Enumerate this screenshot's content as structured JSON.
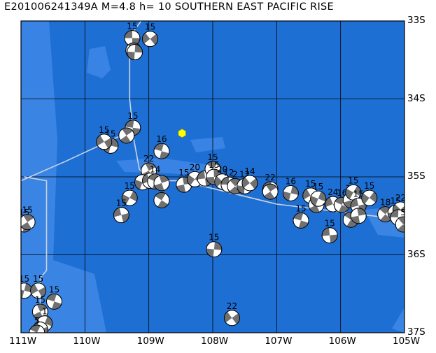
{
  "title": "E201006241349A M=4.8 h= 10 SOUTHERN EAST PACIFIC RISE",
  "map": {
    "lon_range": [
      -111,
      -105
    ],
    "lat_range": [
      -37,
      -33
    ],
    "lon_labels": [
      "111W",
      "110W",
      "109W",
      "108W",
      "107W",
      "106W",
      "105W"
    ],
    "lat_labels": [
      "33S",
      "34S",
      "35S",
      "36S",
      "37S"
    ],
    "colors": {
      "ocean": "#1e6fd4",
      "shallow": "#3d86e6",
      "plate_boundary": "#c8d4e6",
      "frame": "#000000",
      "event_marker": "#ffff00",
      "beach_dark": "#707070"
    }
  },
  "event": {
    "lon": -108.48,
    "lat": -34.44
  },
  "mechanisms": [
    {
      "lon": -109.26,
      "lat": -33.22,
      "label": "15"
    },
    {
      "lon": -109.24,
      "lat": -33.38,
      "label": ""
    },
    {
      "lon": -109.22,
      "lat": -33.4,
      "label": ""
    },
    {
      "lon": -108.98,
      "lat": -33.23,
      "label": "15"
    },
    {
      "lon": -109.25,
      "lat": -34.37,
      "label": "15"
    },
    {
      "lon": -109.35,
      "lat": -34.47,
      "label": ""
    },
    {
      "lon": -109.6,
      "lat": -34.6,
      "label": "15"
    },
    {
      "lon": -109.7,
      "lat": -34.55,
      "label": "15"
    },
    {
      "lon": -108.8,
      "lat": -34.67,
      "label": "16"
    },
    {
      "lon": -109.0,
      "lat": -34.92,
      "label": "22"
    },
    {
      "lon": -109.1,
      "lat": -35.07,
      "label": ""
    },
    {
      "lon": -108.98,
      "lat": -35.05,
      "label": ""
    },
    {
      "lon": -108.9,
      "lat": -35.06,
      "label": "14"
    },
    {
      "lon": -108.8,
      "lat": -35.08,
      "label": ""
    },
    {
      "lon": -109.3,
      "lat": -35.27,
      "label": "15"
    },
    {
      "lon": -109.43,
      "lat": -35.49,
      "label": "15"
    },
    {
      "lon": -108.8,
      "lat": -35.3,
      "label": ""
    },
    {
      "lon": -108.45,
      "lat": -35.1,
      "label": "15"
    },
    {
      "lon": -108.28,
      "lat": -35.03,
      "label": "20"
    },
    {
      "lon": -108.12,
      "lat": -35.02,
      "label": ""
    },
    {
      "lon": -108.0,
      "lat": -34.9,
      "label": "15"
    },
    {
      "lon": -107.98,
      "lat": -35.0,
      "label": "15"
    },
    {
      "lon": -107.85,
      "lat": -35.06,
      "label": "20"
    },
    {
      "lon": -107.75,
      "lat": -35.1,
      "label": "12"
    },
    {
      "lon": -107.65,
      "lat": -35.12,
      "label": "2"
    },
    {
      "lon": -107.5,
      "lat": -35.12,
      "label": "12"
    },
    {
      "lon": -107.42,
      "lat": -35.08,
      "label": "14"
    },
    {
      "lon": -107.1,
      "lat": -35.16,
      "label": "22"
    },
    {
      "lon": -107.1,
      "lat": -35.19,
      "label": ""
    },
    {
      "lon": -106.78,
      "lat": -35.21,
      "label": "16"
    },
    {
      "lon": -106.47,
      "lat": -35.24,
      "label": "15"
    },
    {
      "lon": -106.62,
      "lat": -35.56,
      "label": "15"
    },
    {
      "lon": -106.38,
      "lat": -35.36,
      "label": ""
    },
    {
      "lon": -106.35,
      "lat": -35.28,
      "label": "15"
    },
    {
      "lon": -106.12,
      "lat": -35.35,
      "label": "24"
    },
    {
      "lon": -105.98,
      "lat": -35.36,
      "label": "16"
    },
    {
      "lon": -105.84,
      "lat": -35.3,
      "label": "15"
    },
    {
      "lon": -105.8,
      "lat": -35.2,
      "label": "15"
    },
    {
      "lon": -105.72,
      "lat": -35.37,
      "label": "15"
    },
    {
      "lon": -105.84,
      "lat": -35.55,
      "label": ""
    },
    {
      "lon": -105.72,
      "lat": -35.5,
      "label": ""
    },
    {
      "lon": -105.55,
      "lat": -35.27,
      "label": "15"
    },
    {
      "lon": -106.17,
      "lat": -35.75,
      "label": "15"
    },
    {
      "lon": -105.3,
      "lat": -35.48,
      "label": "18"
    },
    {
      "lon": -105.14,
      "lat": -35.46,
      "label": "15"
    },
    {
      "lon": -105.06,
      "lat": -35.42,
      "label": "22"
    },
    {
      "lon": -105.1,
      "lat": -35.52,
      "label": ""
    },
    {
      "lon": -105.02,
      "lat": -35.61,
      "label": "5"
    },
    {
      "lon": -107.98,
      "lat": -35.93,
      "label": "15"
    },
    {
      "lon": -107.7,
      "lat": -36.81,
      "label": "22"
    },
    {
      "lon": -110.95,
      "lat": -35.61,
      "label": "15"
    },
    {
      "lon": -110.9,
      "lat": -35.58,
      "label": "15"
    },
    {
      "lon": -110.95,
      "lat": -36.46,
      "label": "15"
    },
    {
      "lon": -110.73,
      "lat": -36.46,
      "label": "15"
    },
    {
      "lon": -110.48,
      "lat": -36.6,
      "label": "15"
    },
    {
      "lon": -110.7,
      "lat": -36.73,
      "label": "15"
    },
    {
      "lon": -110.63,
      "lat": -36.88,
      "label": "1"
    },
    {
      "lon": -110.7,
      "lat": -36.96,
      "label": ""
    },
    {
      "lon": -110.75,
      "lat": -37.0,
      "label": "5"
    }
  ]
}
